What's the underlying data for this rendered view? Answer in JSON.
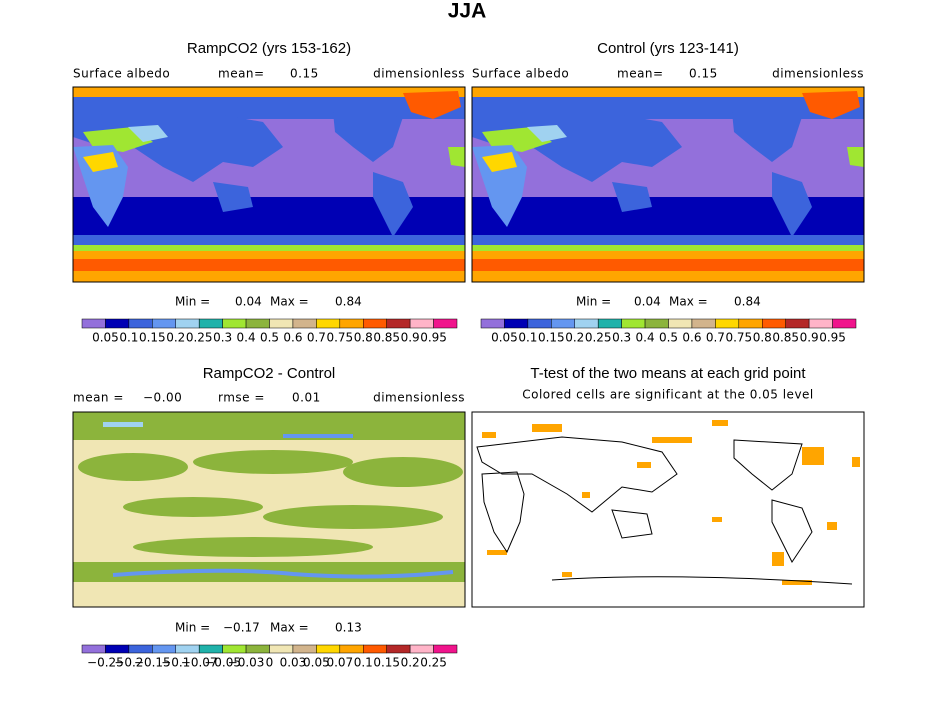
{
  "title": "JJA",
  "panels": [
    {
      "title": "RampCO2 (yrs 153-162)",
      "left": "Surface albedo",
      "mid": "mean=",
      "mid_value": "0.15",
      "right": "dimensionless",
      "min_label": "Min =",
      "min": "0.04",
      "max_label": "Max =",
      "max": "0.84",
      "colorbar": {
        "colors": [
          "#9370db",
          "#0000b4",
          "#3c64dc",
          "#6496f0",
          "#a0d2f0",
          "#20b2aa",
          "#a0e632",
          "#8cb43c",
          "#f0e6b4",
          "#d2b48c",
          "#ffd700",
          "#ffa500",
          "#ff5a00",
          "#b42828",
          "#ffb4c8",
          "#f0148c"
        ],
        "labels": [
          "0.05",
          "0.1",
          "0.15",
          "0.2",
          "0.25",
          "0.3",
          "0.4",
          "0.5",
          "0.6",
          "0.7",
          "0.75",
          "0.8",
          "0.85",
          "0.9",
          "0.95"
        ]
      }
    },
    {
      "title": "Control (yrs 123-141)",
      "left": "Surface albedo",
      "mid": "mean=",
      "mid_value": "0.15",
      "right": "dimensionless",
      "min_label": "Min =",
      "min": "0.04",
      "max_label": "Max =",
      "max": "0.84",
      "colorbar": {
        "colors": [
          "#9370db",
          "#0000b4",
          "#3c64dc",
          "#6496f0",
          "#a0d2f0",
          "#20b2aa",
          "#a0e632",
          "#8cb43c",
          "#f0e6b4",
          "#d2b48c",
          "#ffd700",
          "#ffa500",
          "#ff5a00",
          "#b42828",
          "#ffb4c8",
          "#f0148c"
        ],
        "labels": [
          "0.05",
          "0.1",
          "0.15",
          "0.2",
          "0.25",
          "0.3",
          "0.4",
          "0.5",
          "0.6",
          "0.7",
          "0.75",
          "0.8",
          "0.85",
          "0.9",
          "0.95"
        ]
      }
    },
    {
      "title": "RampCO2 - Control",
      "left": "mean =",
      "left_value": "−0.00",
      "mid": "rmse =",
      "mid_value": "0.01",
      "right": "dimensionless",
      "min_label": "Min =",
      "min": "−0.17",
      "max_label": "Max =",
      "max": "0.13",
      "colorbar": {
        "colors": [
          "#9370db",
          "#0000b4",
          "#3c64dc",
          "#6496f0",
          "#a0d2f0",
          "#20b2aa",
          "#a0e632",
          "#8cb43c",
          "#f0e6b4",
          "#d2b48c",
          "#ffd700",
          "#ffa500",
          "#ff5a00",
          "#b42828",
          "#ffb4c8",
          "#f0148c"
        ],
        "labels": [
          "−0.25",
          "−0.2",
          "−0.15",
          "−0.1",
          "−0.07",
          "−0.05",
          "−0.03",
          "0",
          "0.03",
          "0.05",
          "0.07",
          "0.1",
          "0.15",
          "0.2",
          "0.25"
        ]
      }
    },
    {
      "title": "T-test of the two means at each grid point",
      "subtitle": "Colored cells are significant at the 0.05 level"
    }
  ]
}
